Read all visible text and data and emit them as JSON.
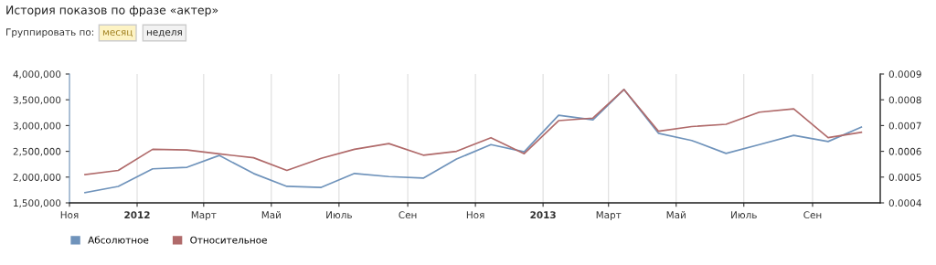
{
  "chart_data": {
    "type": "line",
    "title": "История показов по фразе «актер»",
    "annotations": [
      "Группировать по:",
      "месяц",
      "неделя"
    ],
    "x": [
      "2011-11-15",
      "2011-12-15",
      "2012-01-15",
      "2012-02-15",
      "2012-03-15",
      "2012-04-15",
      "2012-05-15",
      "2012-06-15",
      "2012-07-15",
      "2012-08-15",
      "2012-09-15",
      "2012-10-15",
      "2012-11-15",
      "2012-12-15",
      "2013-01-15",
      "2013-02-15",
      "2013-03-15",
      "2013-04-15",
      "2013-05-15",
      "2013-06-15",
      "2013-07-15",
      "2013-08-15",
      "2013-09-15",
      "2013-10-15"
    ],
    "series": [
      {
        "name": "Абсолютное",
        "color": "#6f93bb",
        "values": [
          1700000,
          1820000,
          2160000,
          2190000,
          2420000,
          2070000,
          1820000,
          1800000,
          2070000,
          2010000,
          1980000,
          2350000,
          2630000,
          2490000,
          3200000,
          3110000,
          3700000,
          2850000,
          2710000,
          2460000,
          2630000,
          2810000,
          2690000,
          2970000
        ]
      },
      {
        "name": "Относительное",
        "color": "#b06a6a",
        "axis": "y2",
        "values": [
          0.00051,
          0.000526,
          0.000608,
          0.000605,
          0.00059,
          0.000575,
          0.000526,
          0.000573,
          0.000608,
          0.00063,
          0.000585,
          0.0006,
          0.000653,
          0.000591,
          0.000719,
          0.000729,
          0.00084,
          0.000678,
          0.000696,
          0.000705,
          0.000752,
          0.000765,
          0.000653,
          0.000674
        ]
      }
    ],
    "xlim": [
      "2011-11-01",
      "2013-11-01"
    ],
    "xticks": [
      {
        "value": "2011-11-01",
        "label": "Ноя"
      },
      {
        "value": "2012-01-01",
        "label": "2012"
      },
      {
        "value": "2012-03-01",
        "label": "Март"
      },
      {
        "value": "2012-05-01",
        "label": "Май"
      },
      {
        "value": "2012-07-01",
        "label": "Июль"
      },
      {
        "value": "2012-09-01",
        "label": "Сен"
      },
      {
        "value": "2012-11-01",
        "label": "Ноя"
      },
      {
        "value": "2013-01-01",
        "label": "2013"
      },
      {
        "value": "2013-03-01",
        "label": "Март"
      },
      {
        "value": "2013-05-01",
        "label": "Май"
      },
      {
        "value": "2013-07-01",
        "label": "Июль"
      },
      {
        "value": "2013-09-01",
        "label": "Сен"
      }
    ],
    "ylim": [
      1500000,
      4000000
    ],
    "yticks": [
      {
        "value": 1500000,
        "label": "1,500,000"
      },
      {
        "value": 2000000,
        "label": "2,000,000"
      },
      {
        "value": 2500000,
        "label": "2,500,000"
      },
      {
        "value": 3000000,
        "label": "3,000,000"
      },
      {
        "value": 3500000,
        "label": "3,500,000"
      },
      {
        "value": 4000000,
        "label": "4,000,000"
      }
    ],
    "y2lim": [
      0.0004,
      0.0009
    ],
    "y2ticks": [
      0.0004,
      0.0005,
      0.0006,
      0.0007,
      0.0008,
      0.0009
    ],
    "grid": "x",
    "legend": "bottom left",
    "line_style": "solid",
    "marker": "none"
  }
}
